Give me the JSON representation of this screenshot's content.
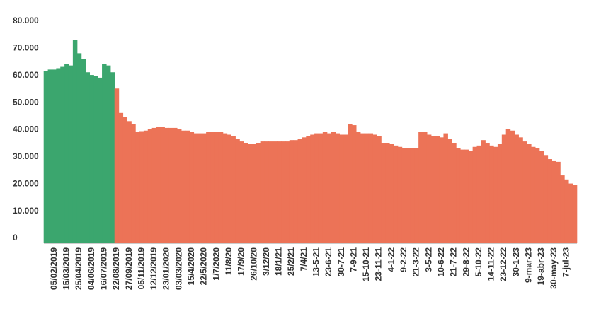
{
  "chart_data": {
    "type": "bar",
    "categories": [
      null,
      null,
      "05/02/2019",
      null,
      null,
      "15/03/2019",
      null,
      null,
      "25/04/2019",
      null,
      null,
      "04/06/2019",
      null,
      null,
      "16/07/2019",
      null,
      null,
      "22/08/2019",
      null,
      null,
      "27/09/2019",
      null,
      null,
      "05/11/2019",
      null,
      null,
      "12/12/2019",
      null,
      null,
      "23/01/2020",
      null,
      null,
      "03/03/2020",
      null,
      null,
      "15/4/2020",
      null,
      null,
      "22/5/2020",
      null,
      null,
      "1/7/2020",
      null,
      null,
      "11/8/20",
      null,
      null,
      "17/9/20",
      null,
      null,
      "26/10/20",
      null,
      null,
      "3/12/20",
      null,
      null,
      "18/1/21",
      null,
      null,
      "25/2/21",
      null,
      null,
      "7/4/21",
      null,
      null,
      "13-5-21",
      null,
      null,
      "23-6-21",
      null,
      null,
      "30-7-21",
      null,
      null,
      "7-9-21",
      null,
      null,
      "15-10-21",
      null,
      null,
      "23-11-21",
      null,
      null,
      "4-1-22",
      null,
      null,
      "9-2-22",
      null,
      null,
      "21-3-22",
      null,
      null,
      "3-5-22",
      null,
      null,
      "10-6-22",
      null,
      null,
      "21-7-22",
      null,
      null,
      "29-8-22",
      null,
      null,
      "5-10-22",
      null,
      null,
      "14-11-22",
      null,
      null,
      "23-12-22",
      null,
      null,
      "30-1-23",
      null,
      null,
      "9-mar-23",
      null,
      null,
      "19-abr-23",
      null,
      null,
      "30-may-23",
      null,
      null,
      "7-jul-23",
      null,
      null
    ],
    "series": [
      {
        "color": "#3ba66e",
        "values": [
          63500,
          64000,
          64000,
          64500,
          65000,
          66000,
          65500,
          75000,
          70000,
          68000,
          63000,
          62000,
          61500,
          61000,
          66000,
          65500,
          63000,
          null,
          null,
          null,
          null,
          null,
          null,
          null,
          null,
          null,
          null,
          null,
          null,
          null,
          null,
          null,
          null,
          null,
          null,
          null,
          null,
          null,
          null,
          null,
          null,
          null,
          null,
          null,
          null,
          null,
          null,
          null,
          null,
          null,
          null,
          null,
          null,
          null,
          null,
          null,
          null,
          null,
          null,
          null,
          null,
          null,
          null,
          null,
          null,
          null,
          null,
          null,
          null,
          null,
          null,
          null,
          null,
          null,
          null,
          null,
          null,
          null,
          null,
          null,
          null,
          null,
          null,
          null,
          null,
          null,
          null,
          null,
          null,
          null,
          null,
          null,
          null,
          null,
          null,
          null,
          null,
          null,
          null,
          null,
          null,
          null,
          null,
          null,
          null,
          null,
          null,
          null,
          null,
          null,
          null,
          null,
          null,
          null,
          null,
          null,
          null,
          null,
          null,
          null,
          null,
          null,
          null,
          null,
          null,
          null,
          null,
          null
        ]
      },
      {
        "color": "#ec7357",
        "values": [
          null,
          null,
          null,
          null,
          null,
          null,
          null,
          null,
          null,
          null,
          null,
          null,
          null,
          null,
          null,
          null,
          null,
          57000,
          48000,
          46500,
          45000,
          44000,
          41000,
          41300,
          41500,
          42000,
          42500,
          43000,
          42800,
          42500,
          42500,
          42500,
          42000,
          41500,
          41500,
          41000,
          40500,
          40500,
          40500,
          41000,
          41000,
          41000,
          41000,
          40500,
          40000,
          39500,
          38500,
          37500,
          37000,
          36500,
          36500,
          37000,
          37500,
          37500,
          37500,
          37500,
          37500,
          37500,
          37500,
          38000,
          38000,
          38500,
          39000,
          39500,
          40000,
          40500,
          40500,
          41000,
          40500,
          41000,
          40500,
          40000,
          40000,
          44000,
          43500,
          41000,
          40500,
          40500,
          40500,
          40000,
          39500,
          37000,
          37000,
          36500,
          36000,
          35500,
          35000,
          35000,
          35000,
          35000,
          41000,
          41000,
          40000,
          39500,
          39500,
          39000,
          40500,
          38500,
          37000,
          35000,
          34500,
          34500,
          34000,
          35500,
          36000,
          38000,
          37000,
          36000,
          35500,
          36500,
          40000,
          42000,
          41500,
          40000,
          39000,
          37500,
          36500,
          35500,
          35000,
          34000,
          32500,
          31000,
          30500,
          30000,
          25000,
          23500,
          22000,
          21500
        ]
      }
    ],
    "ylim": [
      0,
      80000
    ],
    "yticks": [
      0,
      {
        "value": 10000,
        "label": "10.000"
      },
      {
        "value": 20000,
        "label": "20.000"
      },
      {
        "value": 30000,
        "label": "30.000"
      },
      {
        "value": 40000,
        "label": "40.000"
      },
      {
        "value": 50000,
        "label": "50.000"
      },
      {
        "value": 60000,
        "label": "60.000"
      },
      {
        "value": 70000,
        "label": "70.000"
      },
      {
        "value": 80000,
        "label": "80.000"
      }
    ]
  }
}
